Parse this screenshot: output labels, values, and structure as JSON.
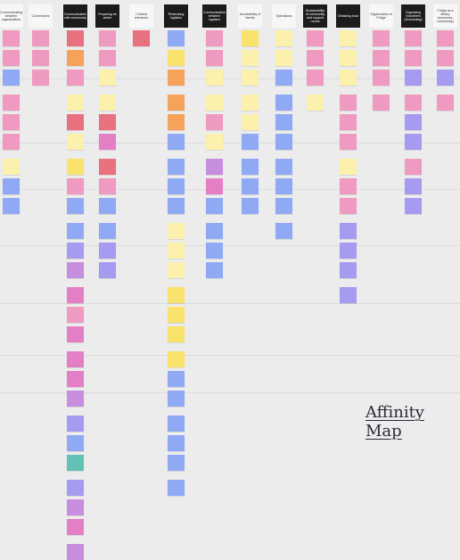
{
  "title": "Affinity Map",
  "colors": {
    "background": "#ececec",
    "pink": "#ef9ac0",
    "red": "#e9707f",
    "magenta": "#e47fc6",
    "purple": "#c78ee0",
    "violet": "#a59bf1",
    "blue": "#90a9f4",
    "teal": "#62c2b6",
    "yellow": "#f9e36c",
    "lightyellow": "#fbf1ad",
    "orange": "#f5a25a",
    "header_dark": "#1b1b1b"
  },
  "columns": [
    {
      "label": "Communicating between organizations",
      "style": "light",
      "notes": [
        "pink",
        "pink",
        "blue",
        "pink",
        "pink",
        "pink",
        "lightyellow",
        "blue",
        "blue"
      ]
    },
    {
      "label": "Connections",
      "style": "light",
      "notes": [
        "pink",
        "pink",
        "pink"
      ]
    },
    {
      "label": "Communication with community",
      "style": "dark",
      "notes": [
        "red",
        "orange",
        "pink",
        "lightyellow",
        "red",
        "lightyellow",
        "yellow",
        "pink",
        "blue",
        "blue",
        "violet",
        "purple",
        "magenta",
        "pink",
        "magenta",
        "magenta",
        "magenta",
        "purple",
        "violet",
        "blue",
        "teal",
        "violet",
        "purple",
        "magenta",
        "purple"
      ]
    },
    {
      "label": "Preparing for winter",
      "style": "dark",
      "notes": [
        "pink",
        "pink",
        "lightyellow",
        "lightyellow",
        "red",
        "magenta",
        "red",
        "pink",
        "blue",
        "blue",
        "violet",
        "violet"
      ]
    },
    {
      "label": "Cultural relevance",
      "style": "light",
      "notes": [
        "red"
      ]
    },
    {
      "label": "Restocking logistics",
      "style": "dark",
      "notes": [
        "blue",
        "yellow",
        "orange",
        "orange",
        "orange",
        "blue",
        "blue",
        "blue",
        "blue",
        "lightyellow",
        "lightyellow",
        "lightyellow",
        "yellow",
        "yellow",
        "yellow",
        "yellow",
        "blue",
        "blue",
        "blue",
        "blue",
        "blue",
        "blue"
      ]
    },
    {
      "label": "Communication between logistics",
      "style": "dark",
      "notes": [
        "pink",
        "pink",
        "lightyellow",
        "lightyellow",
        "pink",
        "lightyellow",
        "purple",
        "magenta",
        "blue",
        "blue",
        "blue",
        "blue"
      ]
    },
    {
      "label": "Accessibility of Needs",
      "style": "light",
      "notes": [
        "yellow",
        "lightyellow",
        "lightyellow",
        "lightyellow",
        "lightyellow",
        "blue",
        "blue",
        "blue",
        "blue"
      ]
    },
    {
      "label": "Operations",
      "style": "light",
      "notes": [
        "lightyellow",
        "lightyellow",
        "blue",
        "blue",
        "blue",
        "blue",
        "blue",
        "blue",
        "blue",
        "blue"
      ]
    },
    {
      "label": "Sustainability of community and support rooms",
      "style": "dark",
      "notes": [
        "pink",
        "pink",
        "pink",
        "lightyellow"
      ]
    },
    {
      "label": "Obtaining food",
      "style": "dark",
      "notes": [
        "lightyellow",
        "lightyellow",
        "lightyellow",
        "pink",
        "pink",
        "pink",
        "lightyellow",
        "pink",
        "pink",
        "violet",
        "violet",
        "violet",
        "violet"
      ]
    },
    {
      "label": "Organization of Fridge",
      "style": "light",
      "notes": [
        "pink",
        "pink",
        "pink",
        "pink"
      ]
    },
    {
      "label": "Organizing Volunteers (Scheduling)",
      "style": "dark",
      "notes": [
        "pink",
        "pink",
        "violet",
        "pink",
        "violet",
        "violet",
        "pink",
        "violet",
        "violet"
      ]
    },
    {
      "label": "Fridge as a library (resources, community)",
      "style": "light",
      "notes": [
        "pink",
        "pink",
        "violet",
        "pink"
      ]
    }
  ]
}
